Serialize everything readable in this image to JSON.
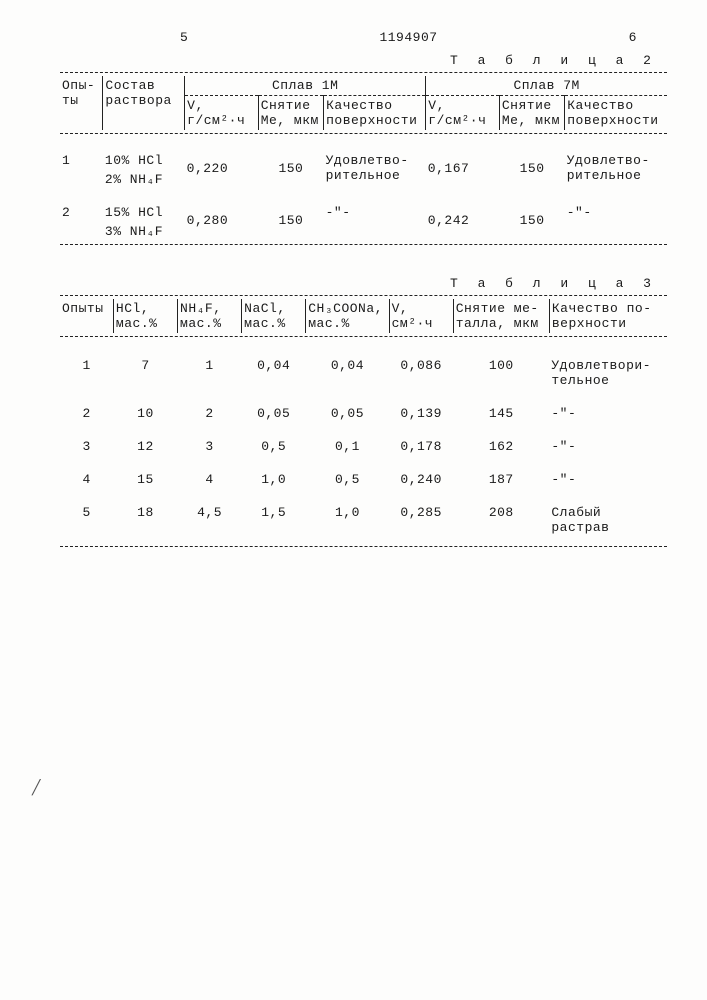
{
  "header": {
    "left_num": "5",
    "doc_num": "1194907",
    "right_num": "6"
  },
  "table2": {
    "caption": "Т а б л и ц а  2",
    "col_opyty": "Опы-\nты",
    "col_sostav": "Состав\nраствора",
    "splav1": "Сплав 1М",
    "splav7": "Сплав 7М",
    "sub_v": "V,\nг/см²·ч",
    "sub_snyatie": "Снятие\nМе, мкм",
    "sub_kach": "Качество\nповерхности",
    "rows": [
      {
        "n": "1",
        "sostav1": "10% HCl",
        "sostav2": "2% NH₄F",
        "v1": "0,220",
        "s1": "150",
        "k1": "Удовлетво-\nрительное",
        "v7": "0,167",
        "s7": "150",
        "k7": "Удовлетво-\nрительное"
      },
      {
        "n": "2",
        "sostav1": "15% HCl",
        "sostav2": "3% NH₄F",
        "v1": "0,280",
        "s1": "150",
        "k1": "-\"-",
        "v7": "0,242",
        "s7": "150",
        "k7": "-\"-"
      }
    ]
  },
  "table3": {
    "caption": "Т а б л и ц а  3",
    "cols": {
      "opyty": "Опыты",
      "hcl": "HCl,\nмас.%",
      "nh4f": "NH₄F,\nмас.%",
      "nacl": "NaCl,\nмас.%",
      "ch3coona": "CH₃COONa,\nмас.%",
      "v": "V,\nсм²·ч",
      "snyatie": "Снятие ме-\nталла, мкм",
      "kach": "Качество по-\nверхности"
    },
    "rows": [
      {
        "n": "1",
        "hcl": "7",
        "nh4f": "1",
        "nacl": "0,04",
        "ch3": "0,04",
        "v": "0,086",
        "sn": "100",
        "k": "Удовлетвори-\nтельное"
      },
      {
        "n": "2",
        "hcl": "10",
        "nh4f": "2",
        "nacl": "0,05",
        "ch3": "0,05",
        "v": "0,139",
        "sn": "145",
        "k": "-\"-"
      },
      {
        "n": "3",
        "hcl": "12",
        "nh4f": "3",
        "nacl": "0,5",
        "ch3": "0,1",
        "v": "0,178",
        "sn": "162",
        "k": "-\"-"
      },
      {
        "n": "4",
        "hcl": "15",
        "nh4f": "4",
        "nacl": "1,0",
        "ch3": "0,5",
        "v": "0,240",
        "sn": "187",
        "k": "-\"-"
      },
      {
        "n": "5",
        "hcl": "18",
        "nh4f": "4,5",
        "nacl": "1,5",
        "ch3": "1,0",
        "v": "0,285",
        "sn": "208",
        "k": "Слабый\nрастрав"
      }
    ]
  }
}
